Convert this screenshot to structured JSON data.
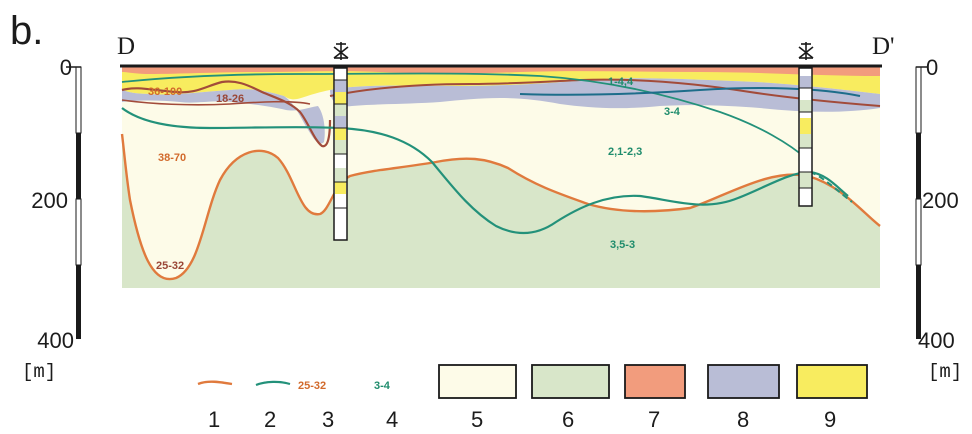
{
  "panel_label": "b.",
  "section_start": "D",
  "section_end": "D'",
  "depth_scale": {
    "ticks": [
      "0",
      "200",
      "400"
    ],
    "unit": "[m]"
  },
  "values": {
    "orange": [
      "36-100",
      "38-70",
      "25-32"
    ],
    "brown": [
      "18-26"
    ],
    "green": [
      "1-4,4",
      "3-4",
      "2,1-2,3",
      "3,5-3"
    ]
  },
  "legend": {
    "items": [
      {
        "number": "1",
        "symbol": "orange-line"
      },
      {
        "number": "2",
        "symbol": "green-line"
      },
      {
        "number": "3",
        "symbol": "orange-value",
        "sample": "25-32"
      },
      {
        "number": "4",
        "symbol": "green-value",
        "sample": "3-4"
      },
      {
        "number": "5",
        "symbol": "swatch",
        "color": "#fdfbe8"
      },
      {
        "number": "6",
        "symbol": "swatch",
        "color": "#d8e6c9"
      },
      {
        "number": "7",
        "symbol": "swatch",
        "color": "#f29c7d"
      },
      {
        "number": "8",
        "symbol": "swatch",
        "color": "#b9bdd6"
      },
      {
        "number": "9",
        "symbol": "swatch",
        "color": "#f8ec5f"
      }
    ]
  },
  "colors": {
    "lower_zone": "#d8e6c9",
    "upper_zone": "#fdfbe8",
    "top_layer": "#f29c7d",
    "clay_layer": "#b9bdd6",
    "sand_layer": "#f8ec5f",
    "orange_line": "#e07a3d",
    "brown_line": "#a24b3a",
    "green_line": "#23917a"
  }
}
